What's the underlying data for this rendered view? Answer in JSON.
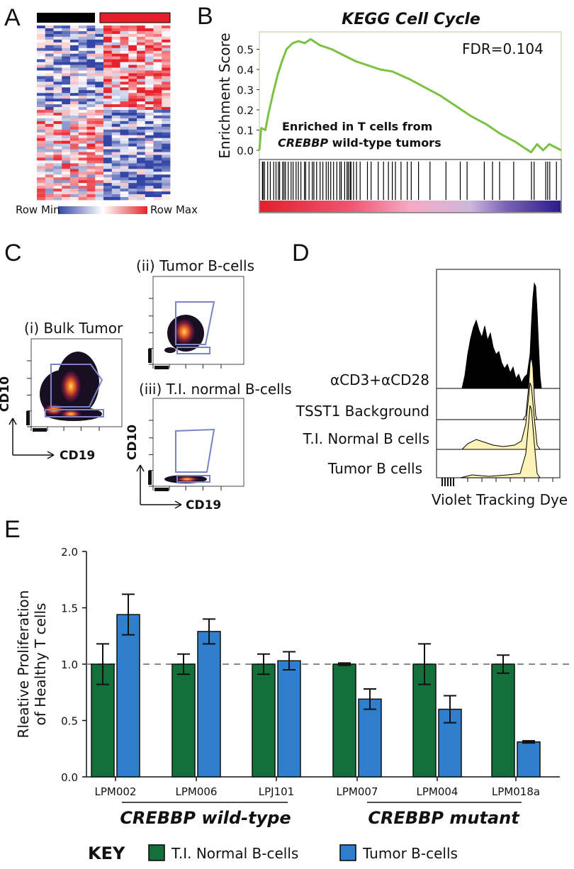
{
  "panels": {
    "a": {
      "label": "A",
      "legend_min": "Row Min",
      "legend_max": "Row Max",
      "group_colors": [
        "#000000",
        "#e0202a"
      ]
    },
    "b": {
      "label": "B",
      "title": "KEGG Cell Cycle",
      "fdr": "FDR=0.104",
      "annotation_line1": "Enriched in T cells from",
      "annotation_line2_italic": "CREBBP",
      "annotation_line2_rest": " wild-type tumors",
      "ylabel": "Enrichment Score",
      "yticks": [
        "0.0",
        "0.1",
        "0.2",
        "0.3",
        "0.4",
        "0.5"
      ],
      "line_color": "#7bc143",
      "es_curve": [
        [
          0,
          0.0
        ],
        [
          0.006,
          0.11
        ],
        [
          0.02,
          0.1
        ],
        [
          0.03,
          0.18
        ],
        [
          0.045,
          0.28
        ],
        [
          0.06,
          0.37
        ],
        [
          0.075,
          0.44
        ],
        [
          0.09,
          0.5
        ],
        [
          0.11,
          0.53
        ],
        [
          0.13,
          0.54
        ],
        [
          0.15,
          0.53
        ],
        [
          0.17,
          0.55
        ],
        [
          0.2,
          0.52
        ],
        [
          0.24,
          0.5
        ],
        [
          0.28,
          0.47
        ],
        [
          0.32,
          0.44
        ],
        [
          0.36,
          0.42
        ],
        [
          0.4,
          0.4
        ],
        [
          0.44,
          0.39
        ],
        [
          0.5,
          0.35
        ],
        [
          0.55,
          0.31
        ],
        [
          0.6,
          0.27
        ],
        [
          0.65,
          0.22
        ],
        [
          0.7,
          0.17
        ],
        [
          0.75,
          0.13
        ],
        [
          0.8,
          0.08
        ],
        [
          0.85,
          0.04
        ],
        [
          0.88,
          0.01
        ],
        [
          0.9,
          -0.01
        ],
        [
          0.92,
          0.03
        ],
        [
          0.94,
          0.0
        ],
        [
          0.96,
          0.03
        ],
        [
          1.0,
          0.0
        ]
      ]
    },
    "c": {
      "label": "C",
      "bulk_title": "(i) Bulk Tumor",
      "tumor_title": "(ii) Tumor B-cells",
      "normal_title": "(iii) T.I. normal B-cells",
      "xaxis": "CD19",
      "yaxis": "CD10"
    },
    "d": {
      "label": "D",
      "conditions": [
        "αCD3+αCD28",
        "TSST1 Background",
        "T.I. Normal B cells",
        "Tumor B cells"
      ],
      "xlabel": "Violet Tracking Dye"
    },
    "e": {
      "label": "E"
    }
  },
  "chart_data": {
    "type": "bar",
    "categories": [
      "LPM002",
      "LPM006",
      "LPJ101",
      "LPM007",
      "LPM004",
      "LPM018a"
    ],
    "series": [
      {
        "name": "T.I. Normal B-cells",
        "color": "#13703a",
        "values": [
          1.0,
          1.0,
          1.0,
          1.0,
          1.0,
          1.0
        ],
        "errors": [
          0.18,
          0.09,
          0.09,
          0.01,
          0.18,
          0.08
        ]
      },
      {
        "name": "Tumor B-cells",
        "color": "#2f7fcc",
        "values": [
          1.44,
          1.29,
          1.03,
          0.69,
          0.6,
          0.31
        ],
        "errors": [
          0.18,
          0.11,
          0.08,
          0.09,
          0.12,
          0.01
        ]
      }
    ],
    "ylabel_line1": "Rleative Proliferation",
    "ylabel_line2": "of Healthy T cells",
    "ylim": [
      0,
      2.0
    ],
    "yticks": [
      "0.0",
      "0.5",
      "1.0",
      "1.5",
      "2.0"
    ],
    "reference_line": 1.0,
    "groups": [
      {
        "label": "CREBBP wild-type",
        "categories": [
          0,
          1,
          2
        ]
      },
      {
        "label": "CREBBP mutant",
        "categories": [
          3,
          4,
          5
        ]
      }
    ],
    "key_title": "KEY"
  }
}
